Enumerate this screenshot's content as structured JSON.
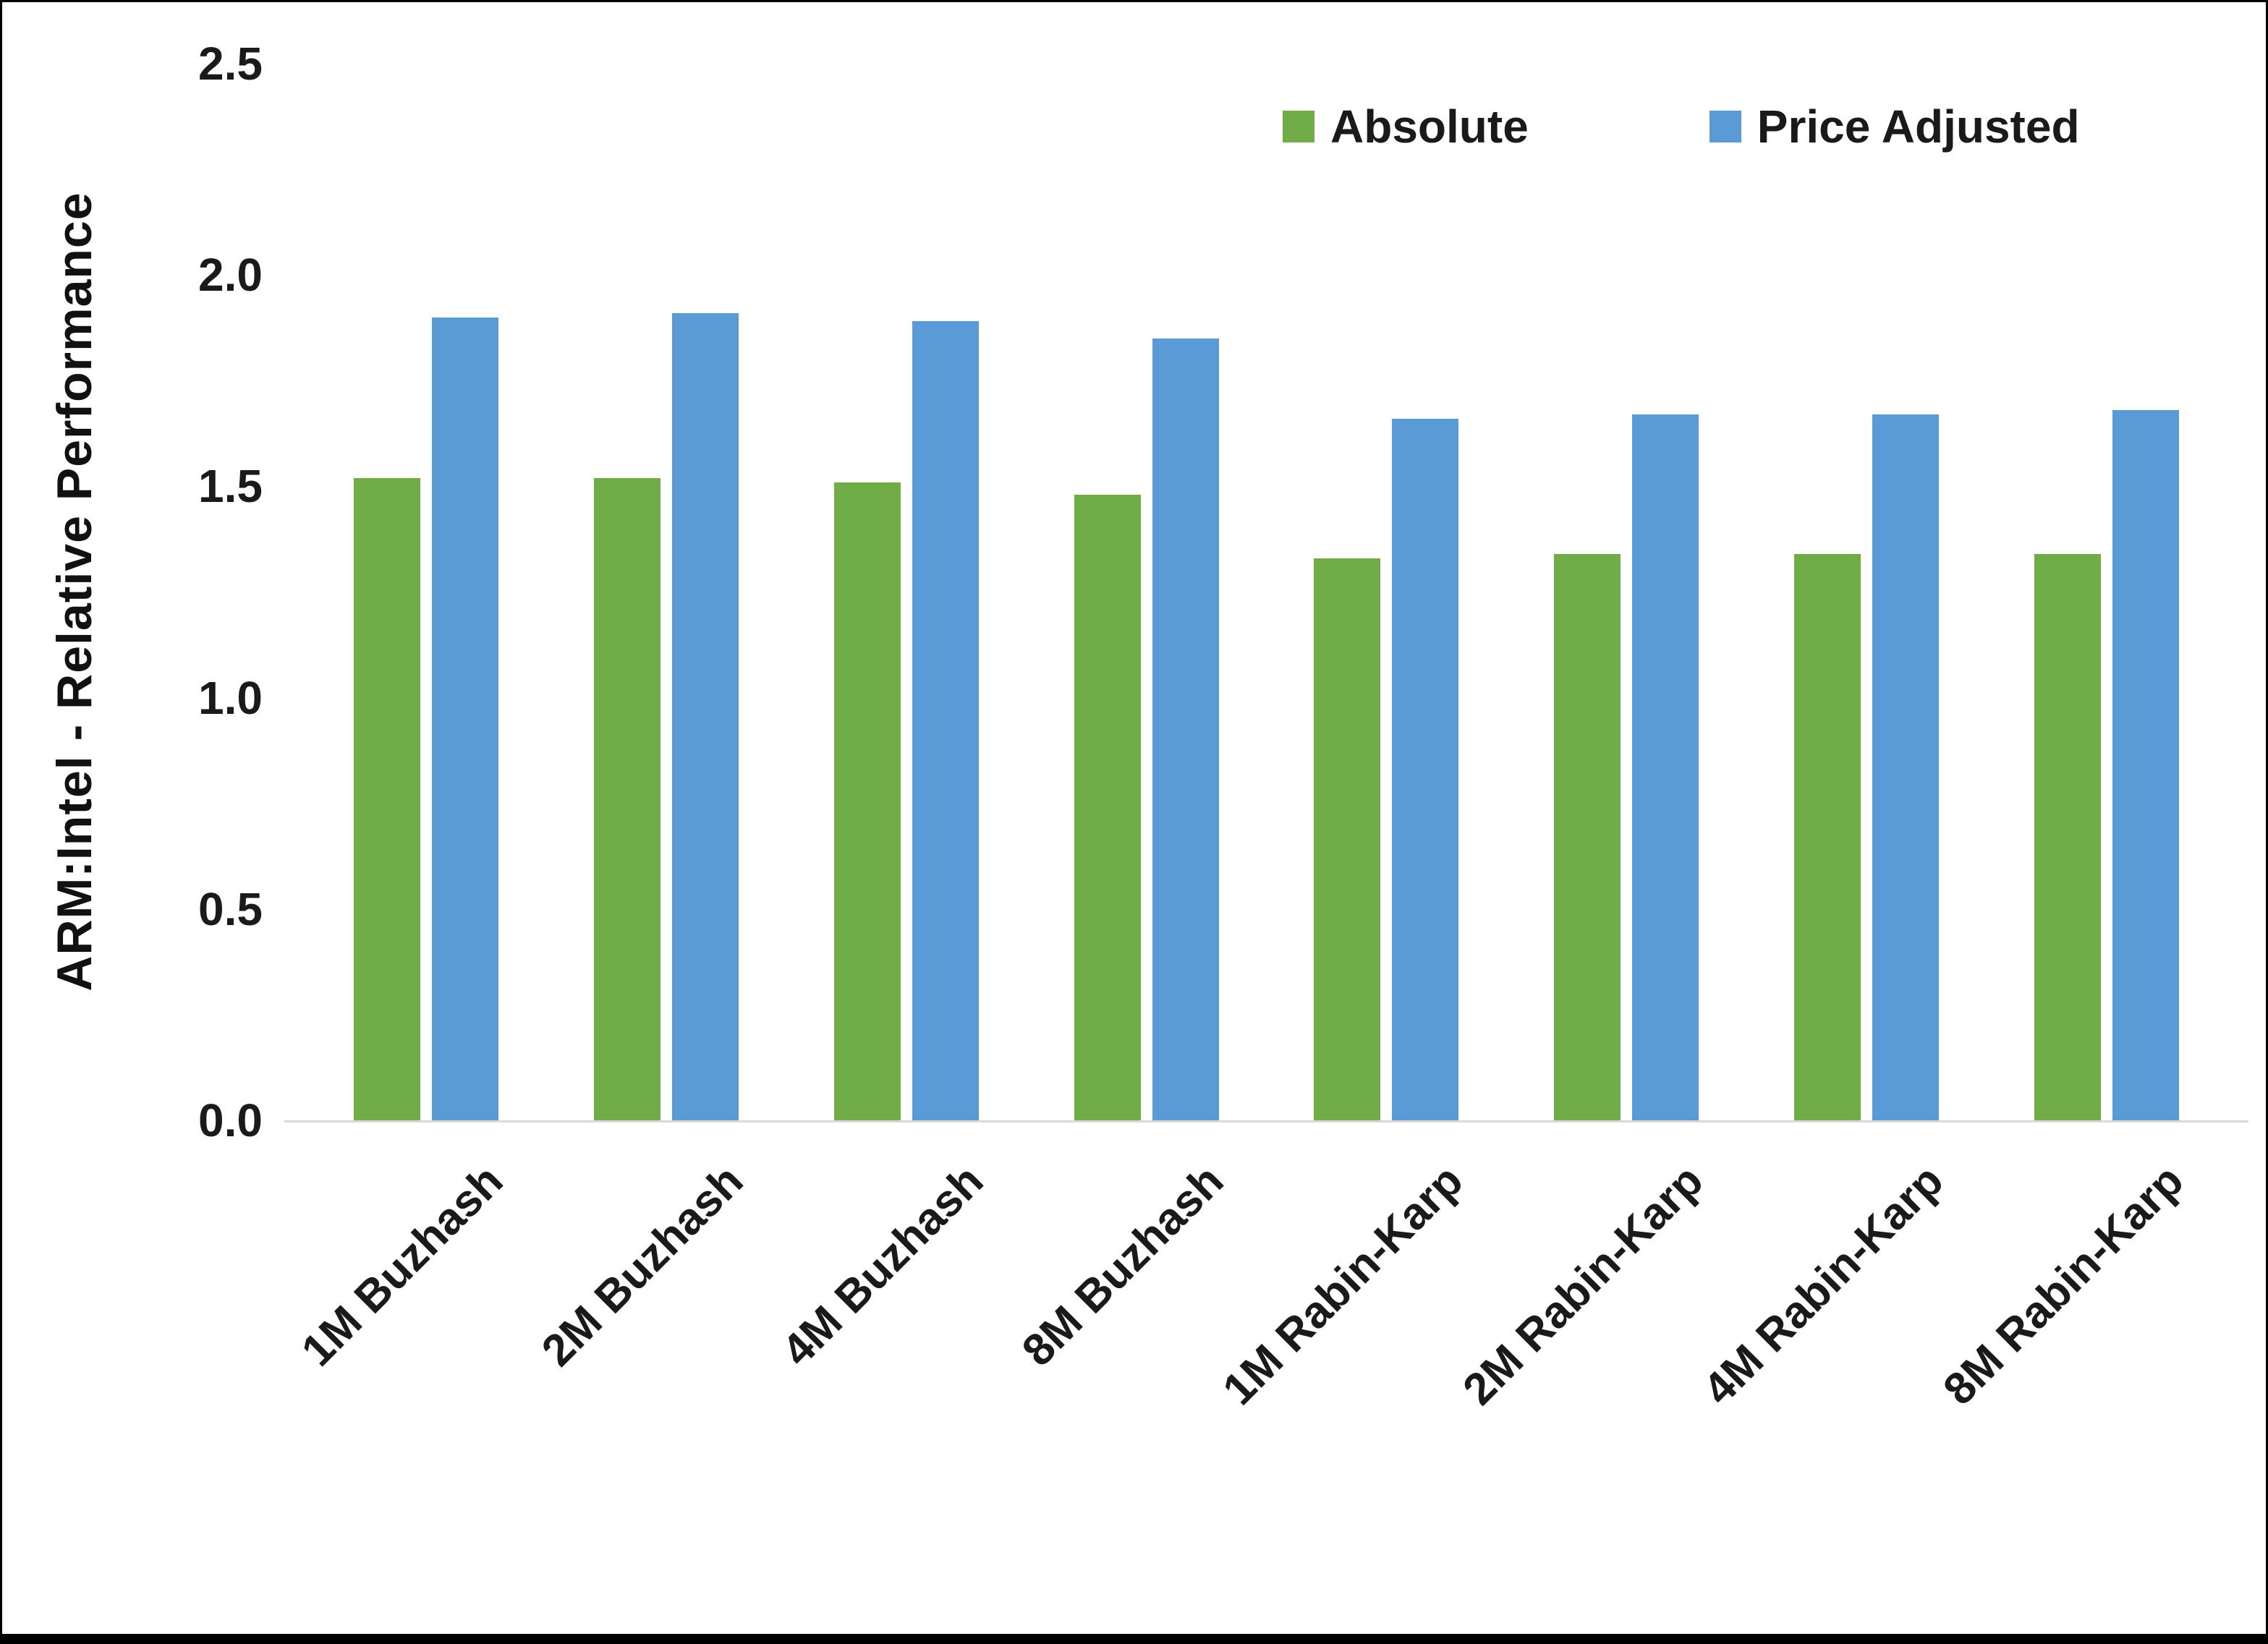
{
  "chart_data": {
    "type": "bar",
    "title": "",
    "xlabel": "",
    "ylabel": "ARM:Intel - Relative Performance",
    "categories": [
      "1M Buzhash",
      "2M Buzhash",
      "4M Buzhash",
      "8M Buzhash",
      "1M Rabin-Karp",
      "2M Rabin-Karp",
      "4M Rabin-Karp",
      "8M Rabin-Karp"
    ],
    "series": [
      {
        "name": "Absolute",
        "color": "#70AD47",
        "values": [
          1.52,
          1.52,
          1.51,
          1.48,
          1.33,
          1.34,
          1.34,
          1.34
        ]
      },
      {
        "name": "Price Adjusted",
        "color": "#5B9BD5",
        "values": [
          1.9,
          1.91,
          1.89,
          1.85,
          1.66,
          1.67,
          1.67,
          1.68
        ]
      }
    ],
    "ylim": [
      0,
      2.5
    ],
    "yticks": [
      0.0,
      0.5,
      1.0,
      1.5,
      2.0,
      2.5
    ],
    "ytick_labels": [
      "0.0",
      "0.5",
      "1.0",
      "1.5",
      "2.0",
      "2.5"
    ],
    "grid": false,
    "legend_position": "top-right",
    "axis_line_color": "#d9d9d9"
  }
}
